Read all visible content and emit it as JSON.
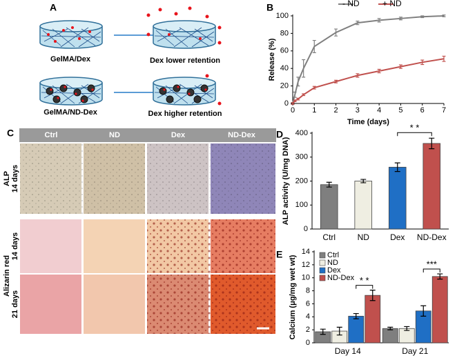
{
  "panel_a": {
    "label": "A",
    "items": [
      {
        "before": "GelMA/Dex",
        "after": "Dex lower retention"
      },
      {
        "before": "GelMA/ND-Dex",
        "after": "Dex higher retention"
      }
    ]
  },
  "panel_c": {
    "label": "C",
    "columns": [
      "Ctrl",
      "ND",
      "Dex",
      "ND-Dex"
    ],
    "rows": [
      {
        "stain": "ALP",
        "time": "14 days"
      },
      {
        "stain": "Alizarin red",
        "time": "14 days"
      },
      {
        "time": "21 days"
      }
    ]
  },
  "chart_data": [
    {
      "type": "line",
      "panel": "B",
      "x_label": "Time (days)",
      "y_label": "Release (%)",
      "x": [
        0,
        0.1,
        0.25,
        0.5,
        1,
        2,
        3,
        4,
        5,
        6,
        7
      ],
      "series": [
        {
          "name": "- ND",
          "color": "#7f7f7f",
          "values": [
            0,
            10,
            25,
            40,
            65,
            81,
            92,
            95,
            97,
            99,
            100
          ],
          "errors": [
            1,
            3,
            5,
            10,
            7,
            4,
            2,
            2,
            1.5,
            1,
            1
          ]
        },
        {
          "name": "+ ND",
          "color": "#c0504d",
          "values": [
            0,
            3,
            5,
            10,
            18,
            25,
            32,
            37,
            42,
            47,
            51
          ],
          "errors": [
            1,
            1,
            1,
            1,
            1.5,
            1.5,
            2,
            2,
            2,
            2.5,
            3
          ]
        }
      ],
      "xlim": [
        0,
        7
      ],
      "xticks": [
        0,
        1,
        2,
        3,
        4,
        5,
        6,
        7
      ],
      "ylim": [
        0,
        100
      ],
      "yticks": [
        0,
        20,
        40,
        60,
        80,
        100
      ],
      "grid": false
    },
    {
      "type": "bar",
      "panel": "D",
      "y_label": "ALP activity (U/mg DNA)",
      "categories": [
        "Ctrl",
        "ND",
        "Dex",
        "ND-Dex"
      ],
      "values": [
        185,
        200,
        258,
        357
      ],
      "errors": [
        10,
        7,
        18,
        22
      ],
      "colors": [
        "#7f7f7f",
        "#efeee2",
        "#1f6fc5",
        "#c0504d"
      ],
      "annotations": [
        "* *"
      ],
      "ylim": [
        0,
        400
      ],
      "yticks": [
        0,
        100,
        200,
        300,
        400
      ],
      "grid": false
    },
    {
      "type": "grouped_bar",
      "panel": "E",
      "y_label": "Calcium (μg/mg wet wt)",
      "categories": [
        "Day 14",
        "Day 21"
      ],
      "series": [
        {
          "name": "Ctrl",
          "color": "#7f7f7f",
          "values": [
            1.7,
            2.2
          ],
          "errors": [
            0.4,
            0.2
          ]
        },
        {
          "name": "ND",
          "color": "#efeee2",
          "values": [
            1.8,
            2.2
          ],
          "errors": [
            0.6,
            0.3
          ]
        },
        {
          "name": "Dex",
          "color": "#1f6fc5",
          "values": [
            4.1,
            4.9
          ],
          "errors": [
            0.4,
            0.8
          ]
        },
        {
          "name": "ND-Dex",
          "color": "#c0504d",
          "values": [
            7.3,
            10.2
          ],
          "errors": [
            0.8,
            0.4
          ]
        }
      ],
      "annotations": [
        "* *",
        "***"
      ],
      "ylim": [
        0,
        14
      ],
      "yticks": [
        0,
        2,
        4,
        6,
        8,
        10,
        12,
        14
      ],
      "grid": false,
      "legend": "upper left"
    }
  ]
}
